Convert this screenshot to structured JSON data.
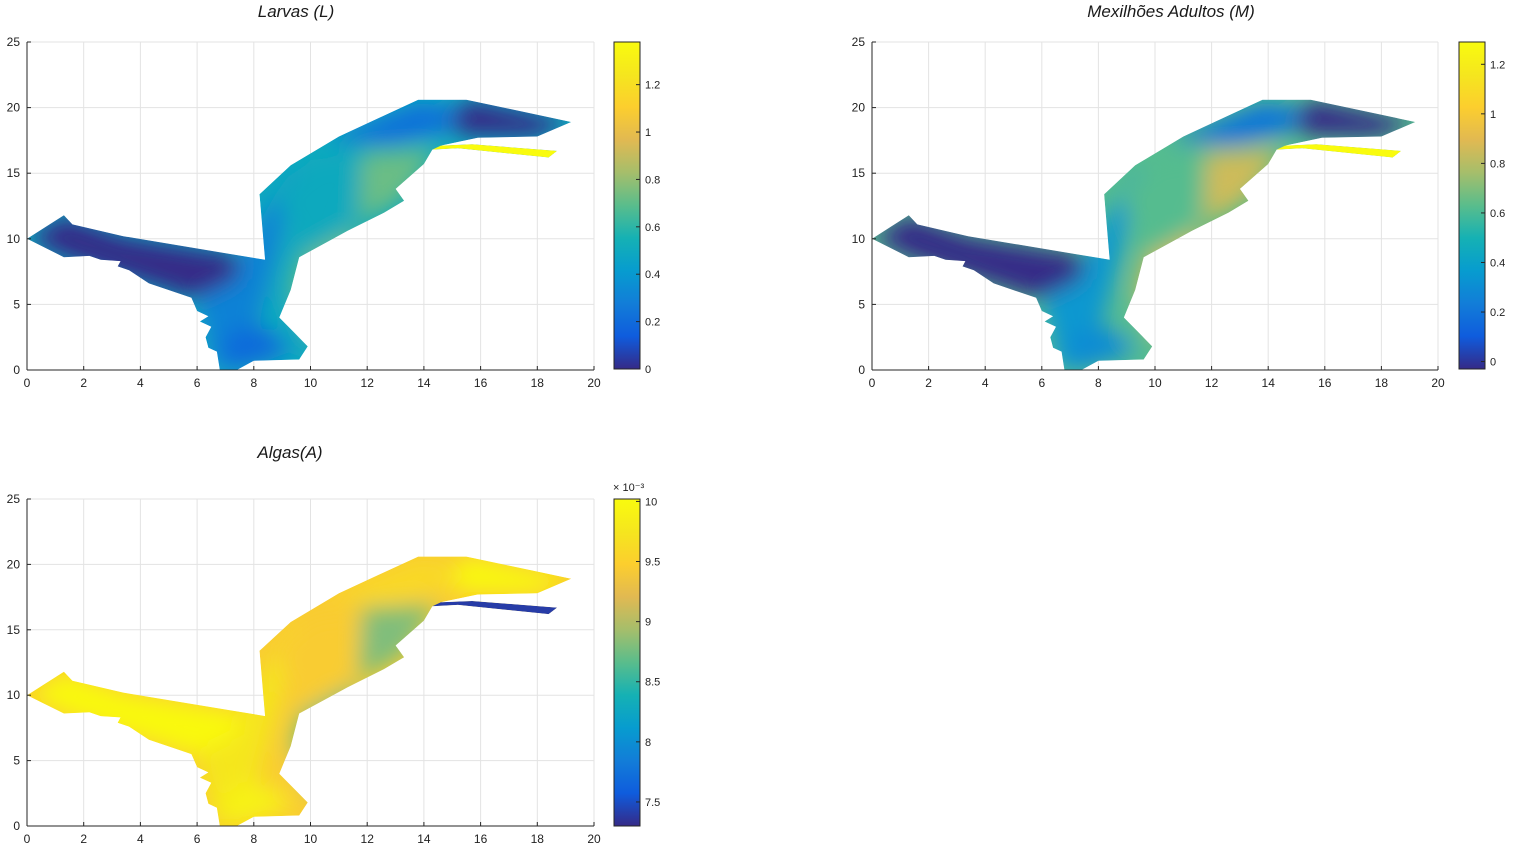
{
  "chart_data": [
    {
      "type": "heatmap",
      "title": "Larvas (L)",
      "xlim": [
        0,
        20
      ],
      "ylim": [
        0,
        25
      ],
      "x_ticks": [
        0,
        2,
        4,
        6,
        8,
        10,
        12,
        14,
        16,
        18,
        20
      ],
      "y_ticks": [
        0,
        5,
        10,
        15,
        20,
        25
      ],
      "grid": true,
      "colorbar": {
        "min": 0,
        "max": 1.38,
        "ticks": [
          0,
          0.2,
          0.4,
          0.6,
          0.8,
          1,
          1.2
        ],
        "tick_labels": [
          "0",
          "0.2",
          "0.4",
          "0.6",
          "0.8",
          "1",
          "1.2"
        ],
        "exponent": "",
        "colormap": "parula"
      },
      "field": {
        "west_arm": 0,
        "channel": 0.3,
        "center": 0.5,
        "east": 0.72,
        "south_tip": 0.2,
        "north_band": 0.22,
        "northeast_spit": 0,
        "east_spit": 1.38
      }
    },
    {
      "type": "heatmap",
      "title": "Mexilhões Adultos (M)",
      "xlim": [
        0,
        20
      ],
      "ylim": [
        0,
        25
      ],
      "x_ticks": [
        0,
        2,
        4,
        6,
        8,
        10,
        12,
        14,
        16,
        18,
        20
      ],
      "y_ticks": [
        0,
        5,
        10,
        15,
        20,
        25
      ],
      "grid": true,
      "colorbar": {
        "min": -0.03,
        "max": 1.29,
        "ticks": [
          0,
          0.2,
          0.4,
          0.6,
          0.8,
          1,
          1.2
        ],
        "tick_labels": [
          "0",
          "0.2",
          "0.4",
          "0.6",
          "0.8",
          "1",
          "1.2"
        ],
        "exponent": "",
        "colormap": "parula"
      },
      "field": {
        "west_arm": -0.03,
        "channel": 0.35,
        "center": 0.62,
        "east": 0.85,
        "south_tip": 0.3,
        "north_band": 0.2,
        "northeast_spit": -0.03,
        "east_spit": 1.29
      }
    },
    {
      "type": "heatmap",
      "title": "Algas(A)",
      "xlim": [
        0,
        20
      ],
      "ylim": [
        0,
        25
      ],
      "x_ticks": [
        0,
        2,
        4,
        6,
        8,
        10,
        12,
        14,
        16,
        18,
        20
      ],
      "y_ticks": [
        0,
        5,
        10,
        15,
        20,
        25
      ],
      "grid": true,
      "colorbar": {
        "min": 7.3,
        "max": 10.02,
        "ticks": [
          7.5,
          8,
          8.5,
          9,
          9.5,
          10
        ],
        "tick_labels": [
          "7.5",
          "8",
          "8.5",
          "9",
          "9.5",
          "10"
        ],
        "exponent": "× 10⁻³",
        "colormap": "parula"
      },
      "field": {
        "west_arm": 10,
        "channel": 9.75,
        "center": 9.45,
        "east": 8.8,
        "south_tip": 9.9,
        "north_band": 9.6,
        "northeast_spit": 10,
        "east_spit": 7.4
      }
    }
  ]
}
